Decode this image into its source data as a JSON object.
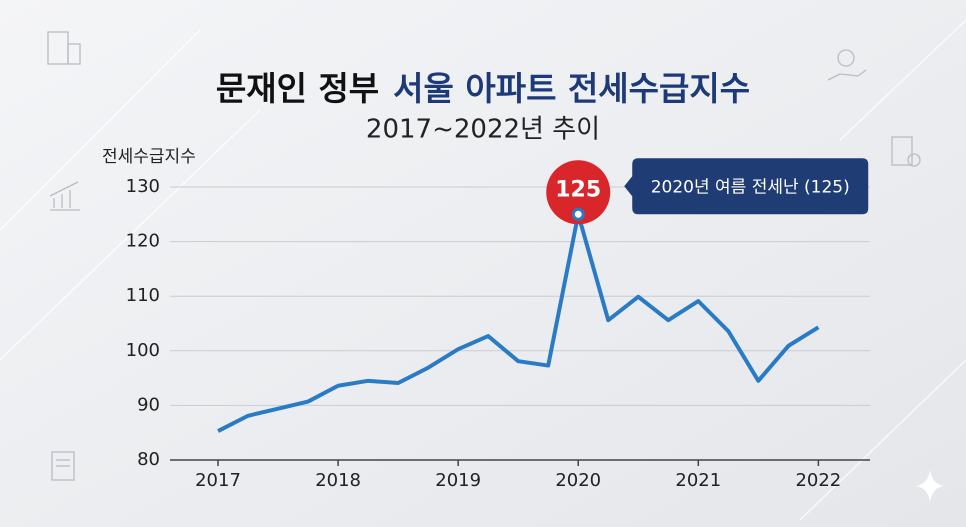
{
  "chart_data": {
    "type": "line",
    "title": [
      "문재인 정부",
      "서울 아파트 전세수급지수"
    ],
    "subtitle": "2017~2022년 추이",
    "y_label": "전세수급지수",
    "annotation": "2020년 여름 전세난 (125)",
    "peak_index": 12,
    "x": [
      2017,
      2017.25,
      2017.5,
      2017.75,
      2018,
      2018.25,
      2018.5,
      2018.75,
      2019,
      2019.25,
      2019.5,
      2019.75,
      2020,
      2020.25,
      2020.5,
      2020.75,
      2021,
      2021.25,
      2021.5,
      2021.75,
      2022
    ],
    "values": [
      85.3,
      88.1,
      89.4,
      90.7,
      93.6,
      94.5,
      94.1,
      96.9,
      100.3,
      102.7,
      98.1,
      97.3,
      125,
      105.6,
      109.9,
      105.6,
      109.1,
      103.6,
      94.5,
      100.9,
      104.3
    ],
    "color": "#2a7bc6",
    "xlim": [
      2016.6,
      2022.43
    ],
    "xticks": [
      2017,
      2018,
      2019,
      2020,
      2021,
      2022
    ],
    "ylim": [
      80,
      130
    ],
    "yticks": [
      80,
      90,
      100,
      110,
      120,
      130
    ],
    "grid": true
  }
}
